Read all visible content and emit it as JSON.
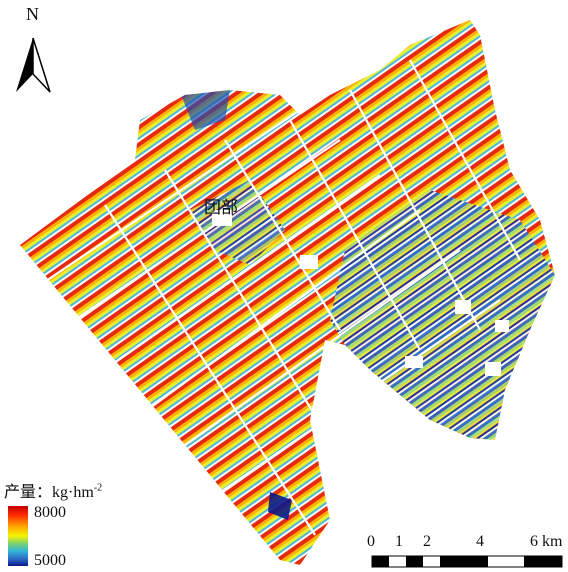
{
  "north_arrow": {
    "label": "N"
  },
  "place_label": "团部",
  "legend": {
    "title": "产量：kg·hm",
    "title_exponent": "-2",
    "max_label": "8000",
    "min_label": "5000",
    "colors": [
      "#c40000",
      "#ff2a00",
      "#ff9a00",
      "#f5f500",
      "#7fd36a",
      "#33b5d6",
      "#2d6dc7",
      "#0a1a8a"
    ]
  },
  "scale_bar": {
    "ticks": [
      "0",
      "1",
      "2",
      "4",
      "6"
    ],
    "unit": "km"
  }
}
